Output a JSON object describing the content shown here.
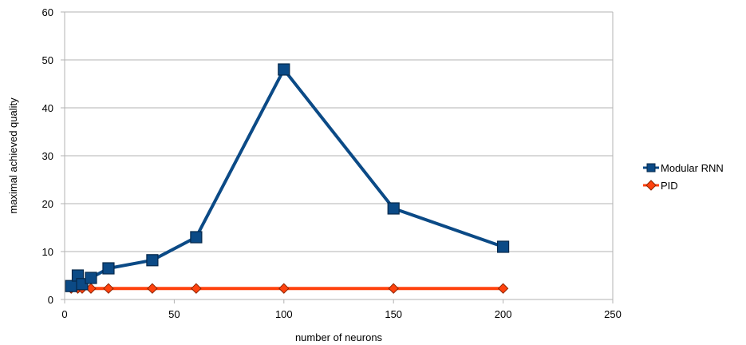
{
  "chart_data": {
    "type": "line",
    "xlabel": "number of neurons",
    "ylabel": "maximal achieved quality",
    "xlim": [
      0,
      250
    ],
    "ylim": [
      0,
      60
    ],
    "xticks": [
      0,
      50,
      100,
      150,
      200,
      250
    ],
    "yticks": [
      0,
      10,
      20,
      30,
      40,
      50,
      60
    ],
    "grid": "horizontal",
    "legend_position": "right",
    "series": [
      {
        "name": "Modular RNN",
        "color": "#0b4a86",
        "marker": "square",
        "x": [
          3,
          6,
          8,
          12,
          20,
          40,
          60,
          100,
          150,
          200
        ],
        "y": [
          2.8,
          5.0,
          3.2,
          4.5,
          6.5,
          8.2,
          13.0,
          48.0,
          19.0,
          11.0
        ]
      },
      {
        "name": "PID",
        "color": "#ff420e",
        "marker": "diamond",
        "x": [
          3,
          6,
          8,
          12,
          20,
          40,
          60,
          100,
          150,
          200
        ],
        "y": [
          2.3,
          2.3,
          2.3,
          2.3,
          2.3,
          2.3,
          2.3,
          2.3,
          2.3,
          2.3
        ]
      }
    ]
  }
}
